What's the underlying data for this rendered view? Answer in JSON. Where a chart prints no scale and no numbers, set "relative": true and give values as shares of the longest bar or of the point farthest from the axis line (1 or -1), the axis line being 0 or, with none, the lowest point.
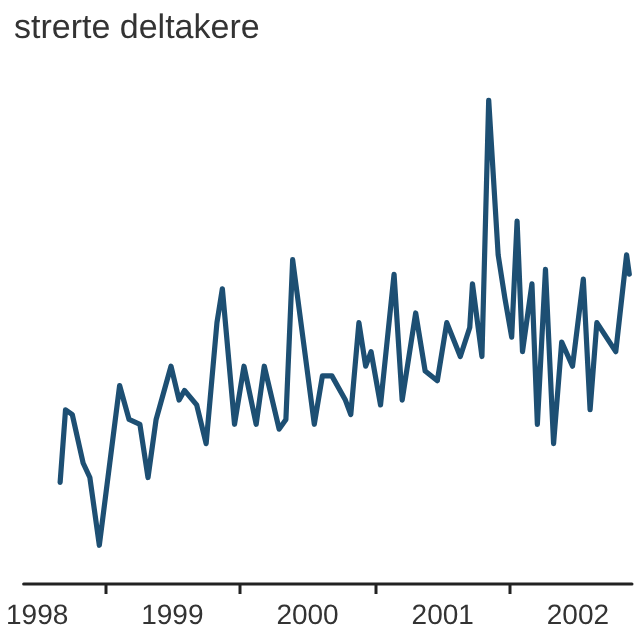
{
  "chart_data": {
    "type": "line",
    "title": "strerte deltakere",
    "relative": true,
    "grid": false,
    "marker": "none",
    "line_style": "solid",
    "x": [
      1998.67,
      1998.71,
      1998.76,
      1998.84,
      1998.89,
      1998.96,
      1999.11,
      1999.18,
      1999.26,
      1999.32,
      1999.38,
      1999.49,
      1999.55,
      1999.59,
      1999.68,
      1999.75,
      1999.83,
      1999.87,
      1999.96,
      2000.03,
      2000.12,
      2000.18,
      2000.29,
      2000.34,
      2000.39,
      2000.47,
      2000.55,
      2000.61,
      2000.68,
      2000.78,
      2000.82,
      2000.88,
      2000.93,
      2000.97,
      2001.04,
      2001.14,
      2001.2,
      2001.3,
      2001.37,
      2001.46,
      2001.53,
      2001.63,
      2001.7,
      2001.72,
      2001.79,
      2001.84,
      2001.91,
      2001.96,
      2002.01,
      2002.05,
      2002.09,
      2002.16,
      2002.2,
      2002.26,
      2002.32,
      2002.38,
      2002.46,
      2002.54,
      2002.59,
      2002.64,
      2002.78,
      2002.86,
      2002.88
    ],
    "series": [
      {
        "color": "#1d4f73",
        "values": [
          0.21,
          0.36,
          0.35,
          0.25,
          0.22,
          0.08,
          0.41,
          0.34,
          0.33,
          0.22,
          0.34,
          0.45,
          0.38,
          0.4,
          0.37,
          0.29,
          0.54,
          0.61,
          0.33,
          0.45,
          0.33,
          0.45,
          0.32,
          0.34,
          0.67,
          0.5,
          0.33,
          0.43,
          0.43,
          0.38,
          0.35,
          0.54,
          0.45,
          0.48,
          0.37,
          0.64,
          0.38,
          0.56,
          0.44,
          0.42,
          0.54,
          0.47,
          0.53,
          0.62,
          0.47,
          1,
          0.68,
          0.59,
          0.51,
          0.75,
          0.48,
          0.62,
          0.33,
          0.65,
          0.29,
          0.5,
          0.45,
          0.63,
          0.36,
          0.54,
          0.48,
          0.68,
          0.64
        ]
      }
    ],
    "xlim": [
      1998.4,
      2002.9
    ],
    "xticks": [
      {
        "value": 1998.5,
        "label": "1998"
      },
      {
        "value": 1999,
        "label": null
      },
      {
        "value": 1999.5,
        "label": "1999"
      },
      {
        "value": 2000,
        "label": null
      },
      {
        "value": 2000.5,
        "label": "2000"
      },
      {
        "value": 2001,
        "label": null
      },
      {
        "value": 2001.5,
        "label": "2001"
      },
      {
        "value": 2002,
        "label": null
      },
      {
        "value": 2002.5,
        "label": "2002"
      }
    ]
  }
}
